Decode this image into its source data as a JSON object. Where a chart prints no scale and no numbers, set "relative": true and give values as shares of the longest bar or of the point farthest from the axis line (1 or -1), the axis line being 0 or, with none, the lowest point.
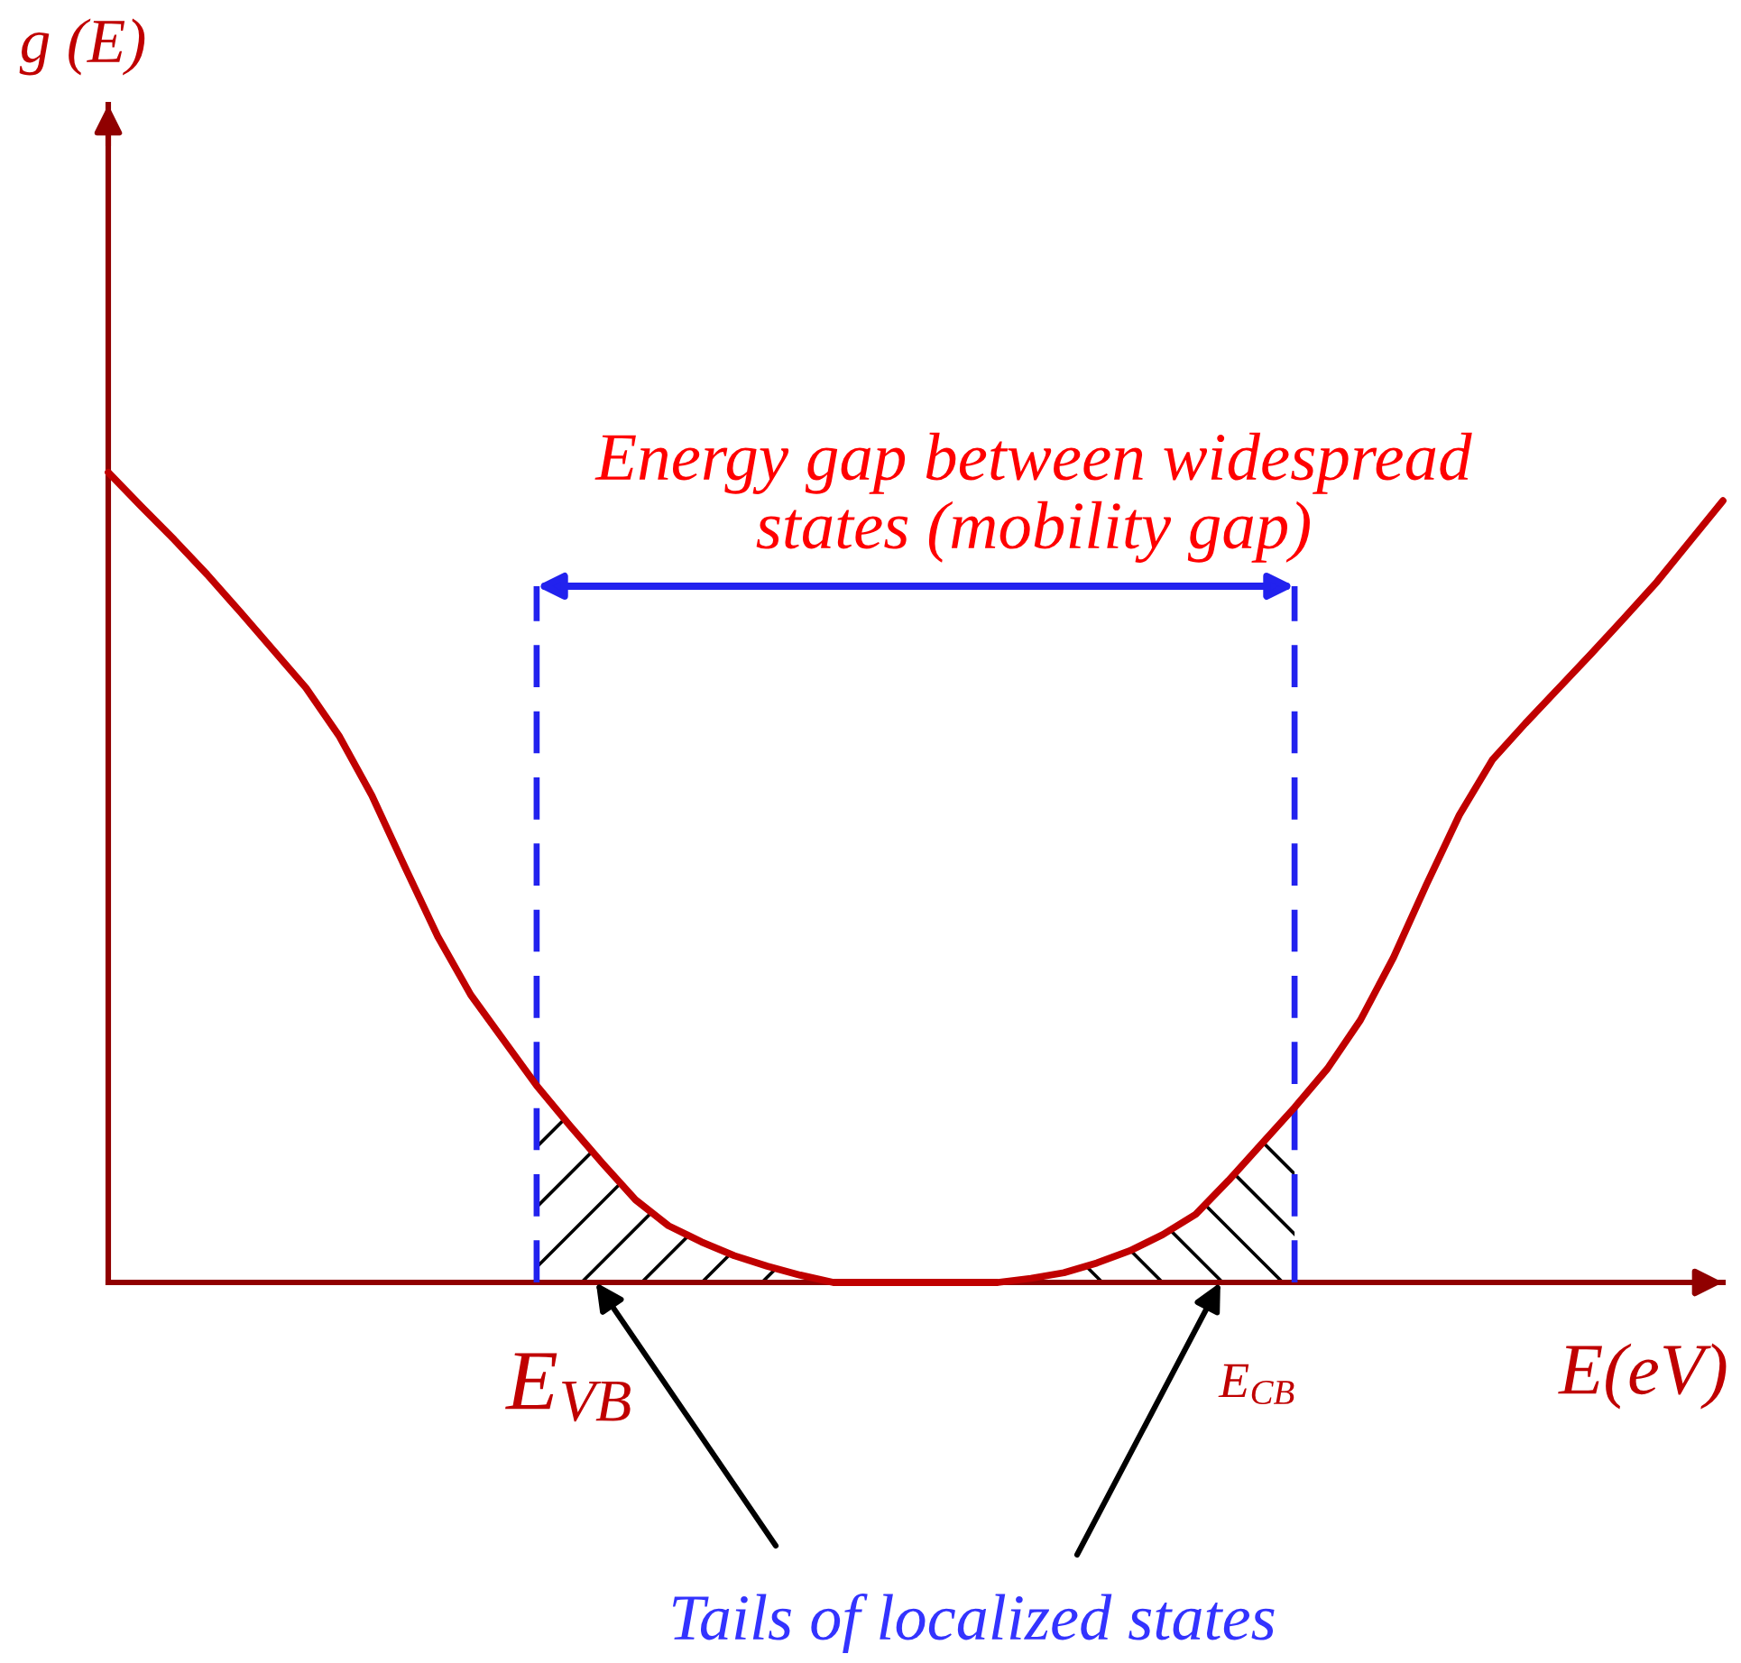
{
  "chart_data": {
    "type": "line",
    "relative": true,
    "xlabel": "E(eV)",
    "categories": [
      null,
      null,
      null,
      null,
      null,
      null,
      null,
      null,
      null,
      null,
      null,
      null,
      null,
      null,
      null,
      null,
      null,
      null,
      null,
      null,
      null,
      null,
      null,
      null,
      null,
      null,
      null,
      null,
      null,
      null,
      null,
      null,
      null,
      null,
      null,
      null,
      null,
      null,
      null,
      null,
      null,
      null,
      null,
      null,
      null,
      null,
      null,
      null,
      null,
      null
    ],
    "series": [
      {
        "color": "#c00000",
        "values": [
          1.0,
          0.958,
          0.917,
          0.874,
          0.828,
          0.781,
          0.734,
          0.675,
          0.601,
          0.513,
          0.427,
          0.355,
          0.299,
          0.243,
          0.194,
          0.147,
          0.102,
          0.07,
          0.05,
          0.033,
          0.02,
          0.009,
          0,
          0,
          0,
          0,
          0,
          0,
          0.005,
          0.012,
          0.024,
          0.039,
          0.059,
          0.084,
          0.126,
          0.171,
          0.216,
          0.264,
          0.324,
          0.401,
          0.491,
          0.577,
          0.645,
          0.69,
          0.733,
          0.776,
          0.82,
          0.865,
          0.915,
          0.965
        ]
      },
      {
        "type": "area",
        "color": "#000000",
        "values": [
          null,
          null,
          null,
          null,
          null,
          null,
          null,
          null,
          null,
          null,
          null,
          null,
          null,
          0.243,
          0.194,
          0.147,
          0.102,
          0.07,
          0.05,
          0.033,
          0.02,
          0.009,
          0,
          null,
          null,
          null,
          null,
          null,
          null,
          null,
          null,
          null,
          null,
          null,
          null,
          null,
          null,
          null,
          null,
          null,
          null,
          null,
          null,
          null,
          null,
          null,
          null,
          null,
          null,
          null
        ]
      },
      {
        "type": "area",
        "color": "#000000",
        "values": [
          null,
          null,
          null,
          null,
          null,
          null,
          null,
          null,
          null,
          null,
          null,
          null,
          null,
          null,
          null,
          null,
          null,
          null,
          null,
          null,
          null,
          null,
          null,
          null,
          null,
          null,
          null,
          0,
          0.005,
          0.012,
          0.024,
          0.039,
          0.059,
          0.084,
          0.126,
          0.171,
          0.216,
          null,
          null,
          null,
          null,
          null,
          null,
          null,
          null,
          null,
          null,
          null,
          null,
          null
        ]
      }
    ],
    "annotations": [
      "Energy gap between widespread\nstates (mobility gap)",
      "Tails of localized states",
      "E$_{VB}$",
      "E$_{CB}$",
      "g (E)"
    ]
  }
}
